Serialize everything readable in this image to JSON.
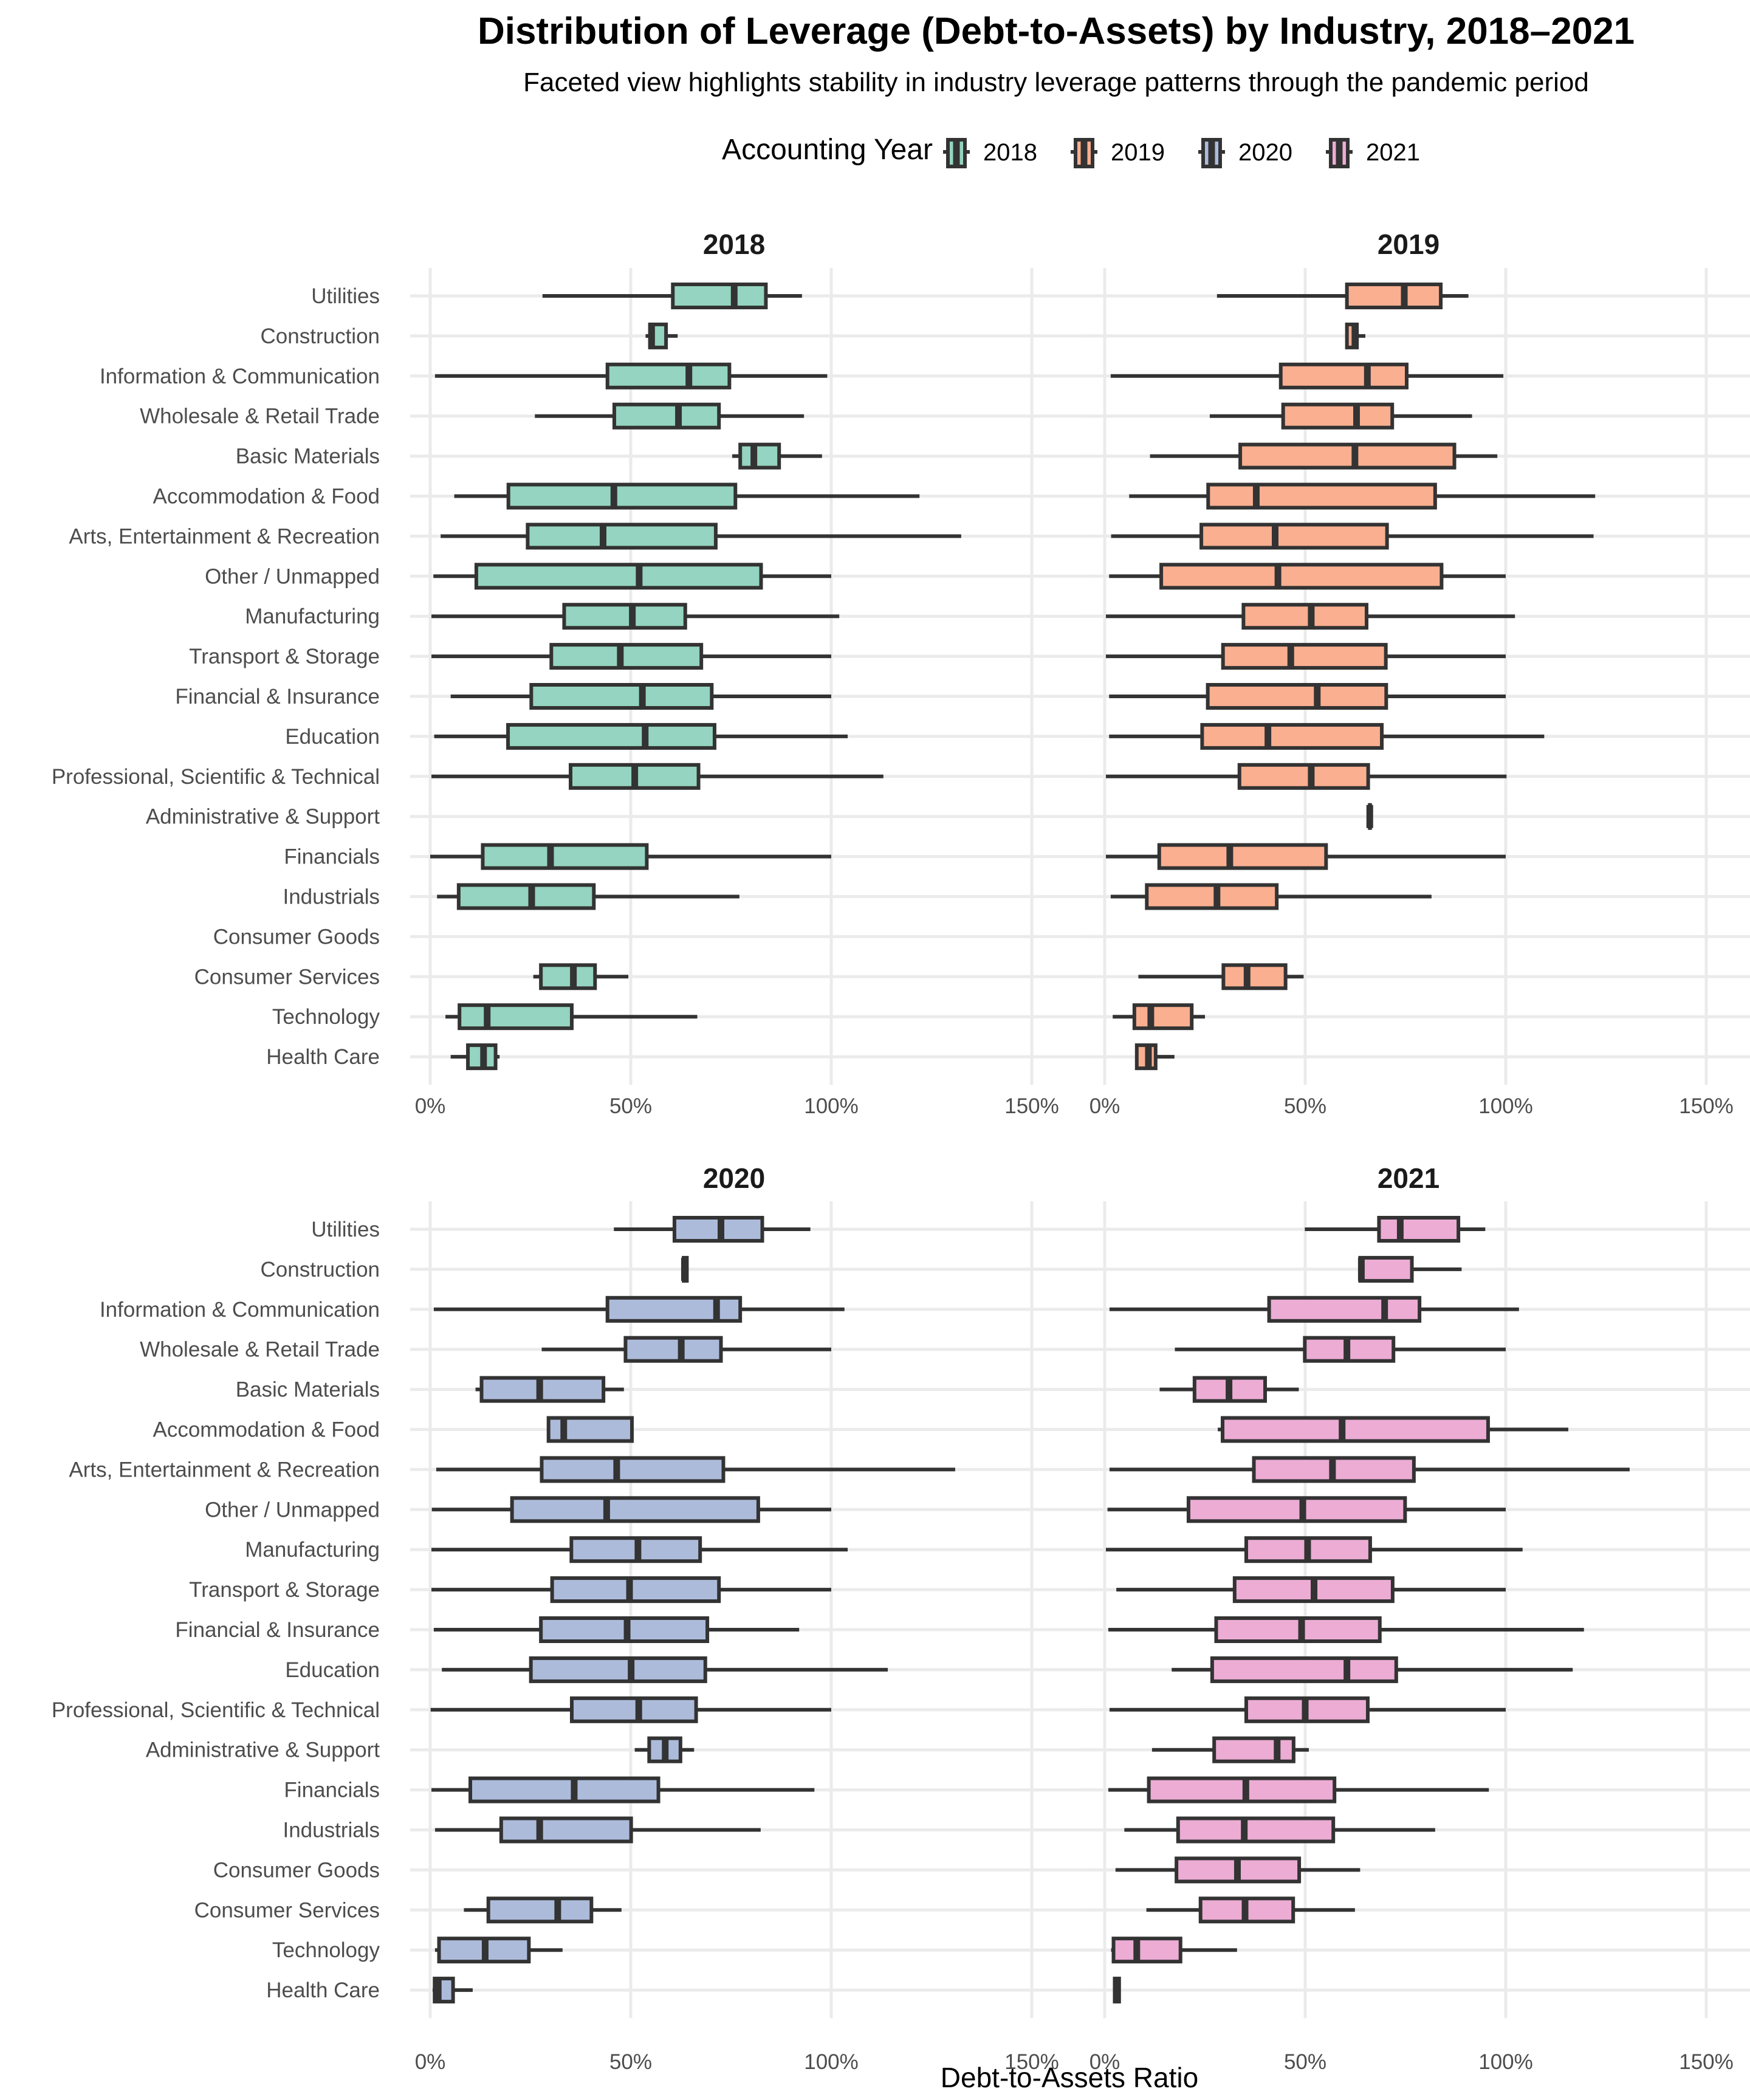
{
  "chart_data": {
    "type": "boxplot",
    "title": "Distribution of Leverage (Debt-to-Assets) by Industry, 2018–2021",
    "subtitle": "Faceted view highlights stability in industry leverage patterns through the pandemic period",
    "xlabel": "Debt-to-Assets Ratio",
    "ylabel": "",
    "xlim": [
      0,
      150
    ],
    "x_unit": "percent",
    "x_ticks": [
      "0%",
      "50%",
      "100%",
      "150%"
    ],
    "x_tick_values": [
      0,
      50,
      100,
      150
    ],
    "grid": true,
    "legend": {
      "title": "Accounting Year",
      "placement": "top",
      "entries": [
        {
          "label": "2018",
          "color": "#66c2a5"
        },
        {
          "label": "2019",
          "color": "#fc8d62"
        },
        {
          "label": "2020",
          "color": "#8da0cb"
        },
        {
          "label": "2021",
          "color": "#e78ac3"
        }
      ]
    },
    "categories": [
      "Utilities",
      "Construction",
      "Information & Communication",
      "Wholesale & Retail Trade",
      "Basic Materials",
      "Accommodation & Food",
      "Arts, Entertainment & Recreation",
      "Other / Unmapped",
      "Manufacturing",
      "Transport & Storage",
      "Financial & Insurance",
      "Education",
      "Professional, Scientific & Technical",
      "Administrative & Support",
      "Financials",
      "Industrials",
      "Consumer Goods",
      "Consumer Services",
      "Technology",
      "Health Care"
    ],
    "stat_order": [
      "whisker_low",
      "q1",
      "median",
      "q3",
      "whisker_high"
    ],
    "facets": [
      {
        "name": "2018",
        "color": "#66c2a5",
        "boxes": [
          [
            28,
            60.5,
            75.8,
            83.7,
            92.7
          ],
          [
            53.7,
            54.8,
            55.2,
            58.8,
            61.7
          ],
          [
            1.2,
            44.2,
            64.5,
            74.6,
            99
          ],
          [
            26.1,
            45.9,
            61.9,
            72,
            93.2
          ],
          [
            75.3,
            77.3,
            80.7,
            87,
            97.7
          ],
          [
            6,
            19.5,
            45.8,
            76.1,
            122
          ],
          [
            2.6,
            24.3,
            43.1,
            71.2,
            132.4
          ],
          [
            0.8,
            11.5,
            52.1,
            82.5,
            100
          ],
          [
            0.3,
            33.4,
            50.4,
            63.6,
            102
          ],
          [
            0.3,
            30.2,
            47.4,
            67.6,
            100
          ],
          [
            5.1,
            25.2,
            52.9,
            70.2,
            100
          ],
          [
            1,
            19.4,
            53.6,
            70.9,
            104.1
          ],
          [
            0.3,
            35,
            51,
            66.9,
            113
          ],
          null,
          [
            0,
            13.1,
            30,
            54,
            100
          ],
          [
            1.7,
            7.1,
            25.3,
            40.8,
            77.1
          ],
          null,
          [
            25.7,
            27.6,
            35.7,
            41.1,
            49.4
          ],
          [
            3.8,
            7.3,
            14.2,
            35.3,
            66.6
          ],
          [
            5.1,
            9.4,
            13.3,
            16.3,
            17.3
          ]
        ]
      },
      {
        "name": "2019",
        "color": "#fc8d62",
        "boxes": [
          [
            28,
            60.4,
            74.7,
            83.8,
            90.7
          ],
          [
            60.2,
            60.4,
            62.4,
            62.9,
            65
          ],
          [
            1.5,
            43.9,
            65.5,
            75.3,
            99.4
          ],
          [
            26.2,
            44.5,
            62.8,
            71.7,
            91.6
          ],
          [
            11.3,
            33.8,
            62.4,
            87.2,
            97.9
          ],
          [
            6.1,
            25.8,
            37.8,
            82.4,
            122.3
          ],
          [
            1.6,
            24.1,
            42.5,
            70.4,
            121.9
          ],
          [
            1.1,
            14.1,
            43.2,
            84,
            100
          ],
          [
            0.3,
            34.6,
            51.5,
            65.3,
            102.3
          ],
          [
            0.3,
            29.5,
            46.4,
            70.1,
            100
          ],
          [
            1.1,
            25.7,
            53,
            70.2,
            100
          ],
          [
            1.1,
            24.3,
            40.7,
            69.1,
            109.6
          ],
          [
            0.3,
            33.6,
            51.5,
            65.7,
            100.2
          ],
          [
            66.1,
            66.1,
            66.1,
            66.1,
            66.1
          ],
          [
            0.3,
            13.6,
            31.2,
            55.2,
            100
          ],
          [
            1.5,
            10.5,
            28,
            42.9,
            81.5
          ],
          null,
          [
            8.4,
            29.6,
            35.5,
            45.1,
            49.6
          ],
          [
            2,
            7.4,
            11.5,
            21.7,
            25
          ],
          [
            8,
            8,
            10.9,
            12.7,
            17.4
          ]
        ]
      },
      {
        "name": "2020",
        "color": "#8da0cb",
        "boxes": [
          [
            45.8,
            60.9,
            72.5,
            82.8,
            94.8
          ],
          [
            62.8,
            63.2,
            63.4,
            64,
            64.3
          ],
          [
            0.9,
            44.2,
            71.4,
            77.3,
            103.3
          ],
          [
            27.8,
            48.7,
            62.6,
            72.5,
            100
          ],
          [
            11.3,
            12.8,
            27.3,
            43.2,
            48.3
          ],
          [
            29.4,
            29.5,
            33.3,
            50.3,
            50.3
          ],
          [
            1.5,
            27.8,
            46.5,
            73.1,
            130.9
          ],
          [
            0.4,
            20.4,
            44,
            81.8,
            100
          ],
          [
            0.3,
            35.2,
            51.8,
            67.3,
            104.1
          ],
          [
            0.3,
            30.4,
            49.7,
            72,
            100
          ],
          [
            0.9,
            27.6,
            49.1,
            69.1,
            92
          ],
          [
            2.9,
            25.1,
            50.1,
            68.6,
            114.1
          ],
          [
            0.1,
            35.3,
            52,
            66.3,
            100
          ],
          [
            51,
            54.6,
            58.6,
            62.4,
            65.8
          ],
          [
            0.3,
            10,
            35.9,
            56.9,
            95.8
          ],
          [
            1.2,
            17.7,
            27.3,
            50.1,
            82.4
          ],
          null,
          [
            8.4,
            14.5,
            31.8,
            40.2,
            47.7
          ],
          [
            1.2,
            2.2,
            13.7,
            24.6,
            33
          ],
          [
            0.6,
            1.1,
            2,
            5.7,
            10.6
          ]
        ]
      },
      {
        "name": "2021",
        "color": "#e78ac3",
        "boxes": [
          [
            49.9,
            68.4,
            73.7,
            88.2,
            94.9
          ],
          [
            63.4,
            63.7,
            64,
            76.6,
            89
          ],
          [
            1.2,
            41,
            69.8,
            78.5,
            103.3
          ],
          [
            17.5,
            49.9,
            60.4,
            72,
            100
          ],
          [
            13.7,
            22.4,
            31,
            40,
            48.4
          ],
          [
            28.2,
            29.4,
            59.2,
            95.6,
            115.6
          ],
          [
            1.2,
            37.2,
            56.8,
            77.1,
            130.9
          ],
          [
            0.7,
            20.9,
            49.4,
            74.9,
            100
          ],
          [
            0.3,
            35.3,
            50.6,
            66.2,
            104.2
          ],
          [
            2.9,
            32.4,
            52.2,
            71.8,
            100
          ],
          [
            0.9,
            27.8,
            49.1,
            68.6,
            119.5
          ],
          [
            16.7,
            26.8,
            60.4,
            72.7,
            116.7
          ],
          [
            1.2,
            35.3,
            50,
            65.6,
            100
          ],
          [
            11.8,
            27.3,
            43,
            47.1,
            50.9
          ],
          [
            0.9,
            11,
            35.2,
            57.3,
            95.8
          ],
          [
            4.9,
            18.3,
            34.8,
            57,
            82.4
          ],
          [
            2.7,
            17.9,
            33.1,
            48.5,
            63.7
          ],
          [
            10.4,
            23.9,
            35,
            47,
            62.4
          ],
          [
            1.6,
            2.2,
            8,
            18.9,
            33
          ],
          [
            2.2,
            2.5,
            2.9,
            3.6,
            3.8
          ]
        ]
      }
    ]
  },
  "fill_colors": {
    "2018": "#94d4c0",
    "2019": "#faaf90",
    "2020": "#adbbdb",
    "2021": "#ecacd4"
  },
  "line_color": "#333333",
  "grid_color": "#ebebeb"
}
